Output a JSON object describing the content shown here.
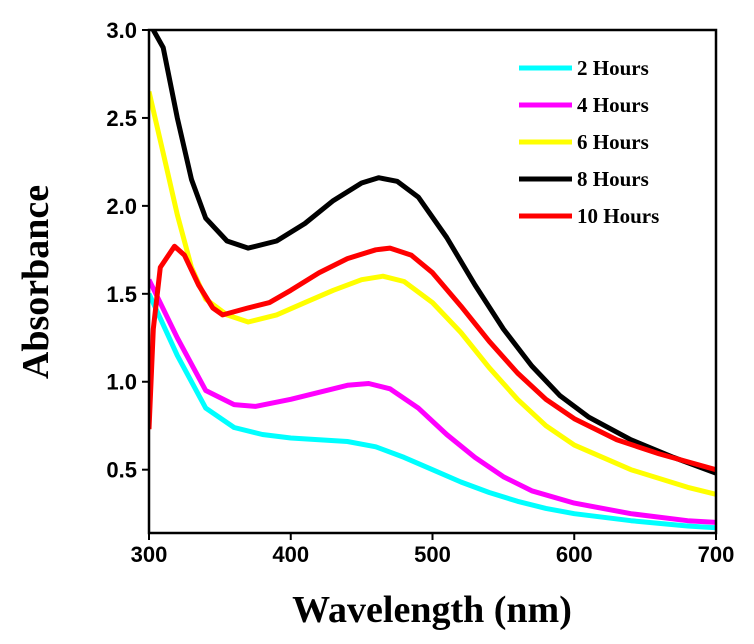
{
  "chart_data": {
    "type": "line",
    "title": "",
    "xlabel": "Wavelength (nm)",
    "ylabel": "Absorbance",
    "xlim": [
      300,
      700
    ],
    "ylim": [
      0.14,
      3.0
    ],
    "xticks": [
      300,
      400,
      500,
      600,
      700
    ],
    "xtick_labels": [
      "300",
      "400",
      "500",
      "600",
      "700"
    ],
    "yticks": [
      0.5,
      1.0,
      1.5,
      2.0,
      2.5,
      3.0
    ],
    "ytick_labels": [
      "0.5",
      "1.0",
      "1.5",
      "2.0",
      "2.5",
      "3.0"
    ],
    "grid": false,
    "legend_position": "top-right",
    "series": [
      {
        "name": "2 Hours",
        "color": "#00ffff",
        "x": [
          300,
          320,
          340,
          360,
          380,
          400,
          420,
          440,
          460,
          480,
          500,
          520,
          540,
          560,
          580,
          600,
          640,
          680,
          700
        ],
        "y": [
          1.5,
          1.15,
          0.85,
          0.74,
          0.7,
          0.68,
          0.67,
          0.66,
          0.63,
          0.57,
          0.5,
          0.43,
          0.37,
          0.32,
          0.28,
          0.25,
          0.21,
          0.18,
          0.17
        ]
      },
      {
        "name": "4 Hours",
        "color": "#ff00ff",
        "x": [
          300,
          320,
          340,
          360,
          375,
          400,
          420,
          440,
          455,
          470,
          490,
          510,
          530,
          550,
          570,
          600,
          640,
          680,
          700
        ],
        "y": [
          1.58,
          1.25,
          0.95,
          0.87,
          0.86,
          0.9,
          0.94,
          0.98,
          0.99,
          0.96,
          0.85,
          0.7,
          0.57,
          0.46,
          0.38,
          0.31,
          0.25,
          0.21,
          0.2
        ]
      },
      {
        "name": "6 Hours",
        "color": "#ffff00",
        "x": [
          300,
          310,
          320,
          330,
          340,
          355,
          370,
          390,
          410,
          430,
          450,
          465,
          480,
          500,
          520,
          540,
          560,
          580,
          600,
          640,
          680,
          700
        ],
        "y": [
          2.65,
          2.3,
          1.95,
          1.65,
          1.47,
          1.38,
          1.34,
          1.38,
          1.45,
          1.52,
          1.58,
          1.6,
          1.57,
          1.45,
          1.28,
          1.08,
          0.9,
          0.75,
          0.64,
          0.5,
          0.4,
          0.36
        ]
      },
      {
        "name": "8 Hours",
        "color": "#000000",
        "x": [
          303,
          310,
          320,
          330,
          340,
          355,
          370,
          390,
          410,
          430,
          450,
          462,
          475,
          490,
          510,
          530,
          550,
          570,
          590,
          610,
          640,
          670,
          700
        ],
        "y": [
          3.0,
          2.9,
          2.5,
          2.15,
          1.93,
          1.8,
          1.76,
          1.8,
          1.9,
          2.03,
          2.13,
          2.16,
          2.14,
          2.05,
          1.82,
          1.55,
          1.3,
          1.09,
          0.92,
          0.8,
          0.67,
          0.57,
          0.48
        ]
      },
      {
        "name": "10 Hours",
        "color": "#ff0000",
        "x": [
          300,
          303,
          308,
          318,
          325,
          335,
          345,
          352,
          370,
          385,
          400,
          420,
          440,
          460,
          470,
          485,
          500,
          520,
          540,
          560,
          580,
          600,
          630,
          660,
          700
        ],
        "y": [
          0.73,
          1.3,
          1.65,
          1.77,
          1.72,
          1.55,
          1.42,
          1.38,
          1.42,
          1.45,
          1.52,
          1.62,
          1.7,
          1.75,
          1.76,
          1.72,
          1.62,
          1.43,
          1.23,
          1.05,
          0.9,
          0.79,
          0.67,
          0.59,
          0.5
        ]
      }
    ]
  }
}
